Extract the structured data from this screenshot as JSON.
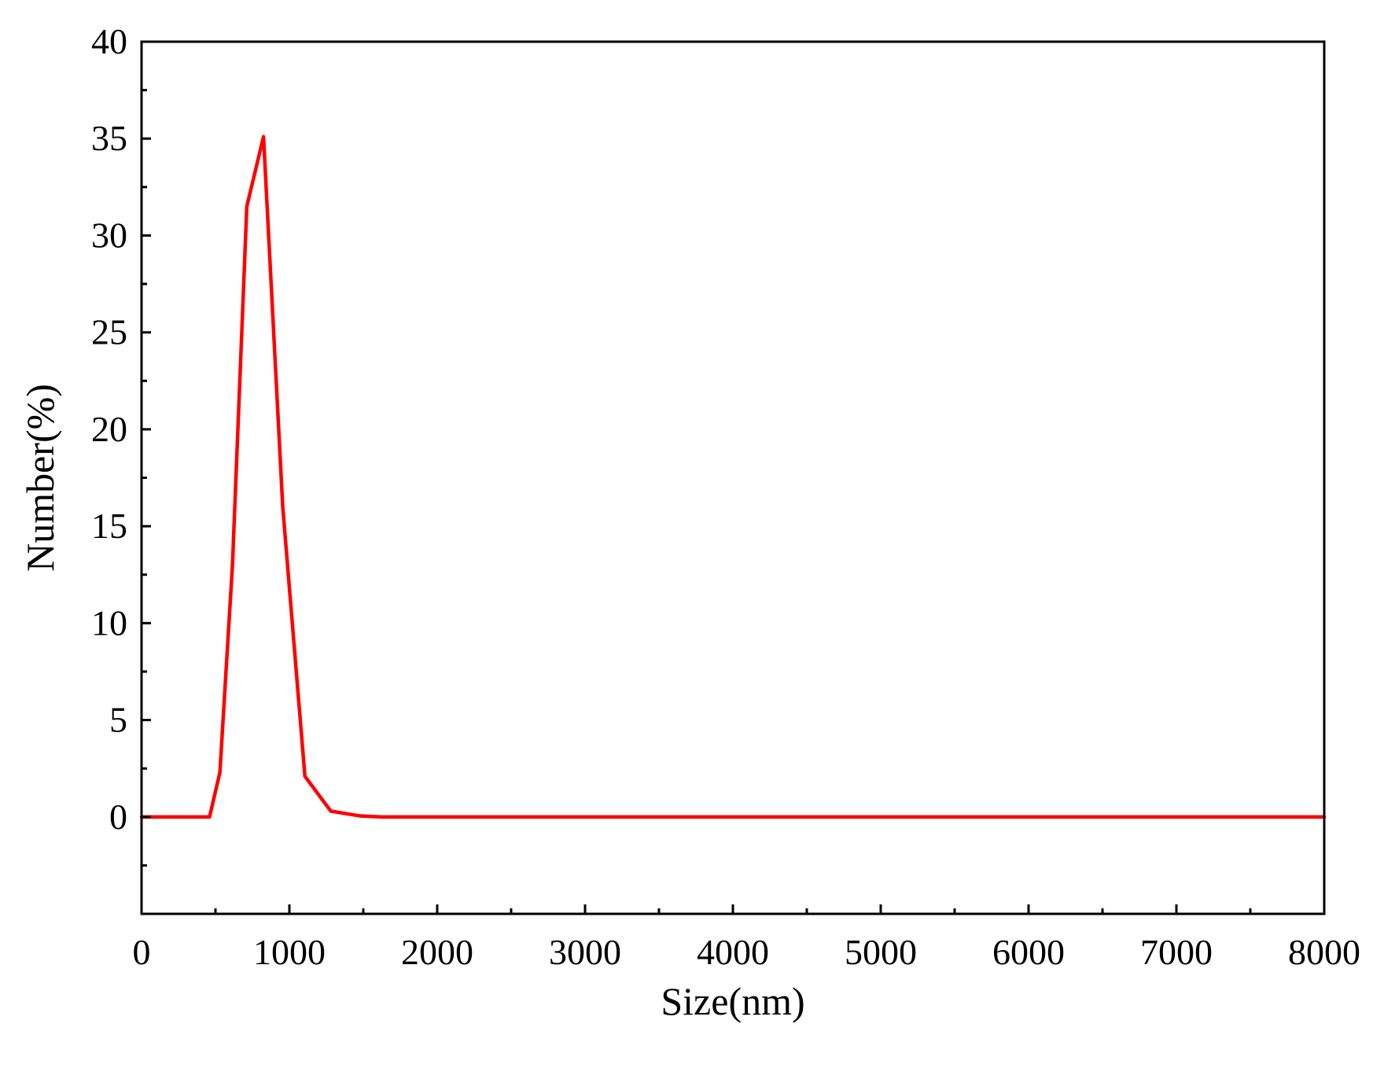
{
  "chart_data": {
    "type": "line",
    "title": "",
    "xlabel": "Size(nm)",
    "ylabel": "Number(%)",
    "xlim": [
      0,
      8000
    ],
    "ylim": [
      -5,
      40
    ],
    "x_ticks": [
      0,
      1000,
      2000,
      3000,
      4000,
      5000,
      6000,
      7000,
      8000
    ],
    "x_tick_labels": [
      "0",
      "1000",
      "2000",
      "3000",
      "4000",
      "5000",
      "6000",
      "7000",
      "8000"
    ],
    "x_minor_step": 500,
    "y_ticks": [
      0,
      5,
      10,
      15,
      20,
      25,
      30,
      35,
      40
    ],
    "y_tick_labels": [
      "0",
      "5",
      "10",
      "15",
      "20",
      "25",
      "30",
      "35",
      "40"
    ],
    "y_minor_step": 2.5,
    "grid": false,
    "legend": "none",
    "series": [
      {
        "color": "#ff0000",
        "x": [
          0,
          460,
          530,
          615,
          712,
          825,
          955,
          1105,
          1280,
          1480,
          1620,
          8000
        ],
        "y": [
          0,
          0,
          2.3,
          13.0,
          31.5,
          35.1,
          16.0,
          2.1,
          0.3,
          0.05,
          0,
          0
        ]
      }
    ]
  }
}
